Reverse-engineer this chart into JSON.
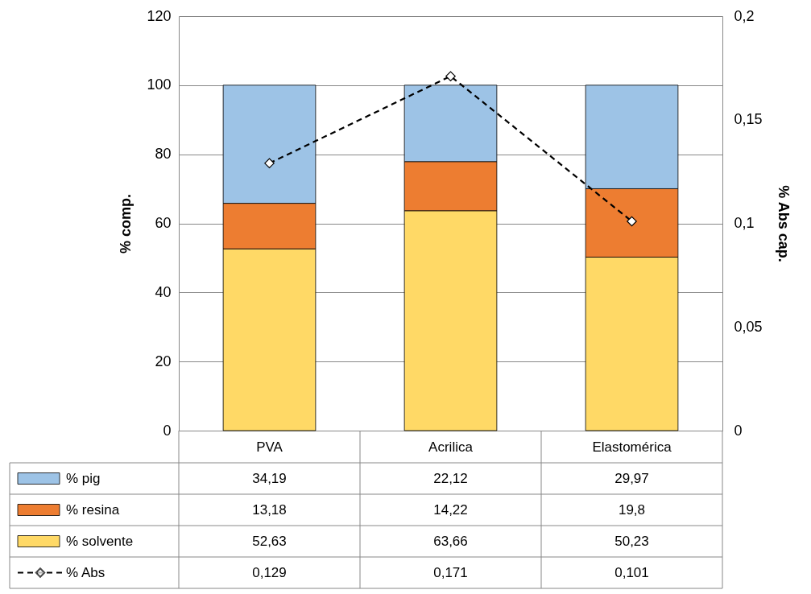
{
  "chart_data": {
    "type": "bar",
    "stacked": true,
    "categories": [
      "PVA",
      "Acrilica",
      "Elastomérica"
    ],
    "series": [
      {
        "name": "% solvente",
        "color": "#ffd966",
        "values": [
          52.63,
          63.66,
          50.23
        ],
        "value_labels": [
          "52,63",
          "63,66",
          "50,23"
        ]
      },
      {
        "name": "% resina",
        "color": "#ed7d31",
        "values": [
          13.18,
          14.22,
          19.8
        ],
        "value_labels": [
          "13,18",
          "14,22",
          "19,8"
        ]
      },
      {
        "name": "% pig",
        "color": "#9dc3e6",
        "values": [
          34.19,
          22.12,
          29.97
        ],
        "value_labels": [
          "34,19",
          "22,12",
          "29,97"
        ]
      },
      {
        "name": "% Abs",
        "type": "line",
        "axis": "y2",
        "color": "#000000",
        "values": [
          0.129,
          0.171,
          0.101
        ],
        "value_labels": [
          "0,129",
          "0,171",
          "0,101"
        ]
      }
    ],
    "ylabel": "% comp.",
    "y2label": "% Abs cap.",
    "ylim": [
      0,
      120
    ],
    "yticks": [
      0,
      20,
      40,
      60,
      80,
      100,
      120
    ],
    "y2lim": [
      0,
      0.2
    ],
    "y2ticks": [
      0,
      {
        "value": 0.05,
        "label": "0,05"
      },
      {
        "value": 0.1,
        "label": "0,1"
      },
      {
        "value": 0.15,
        "label": "0,15"
      },
      {
        "value": 0.2,
        "label": "0,2"
      }
    ],
    "grid": "y",
    "legend": "bottom",
    "marker": "diamond",
    "line_style": "dashed"
  }
}
